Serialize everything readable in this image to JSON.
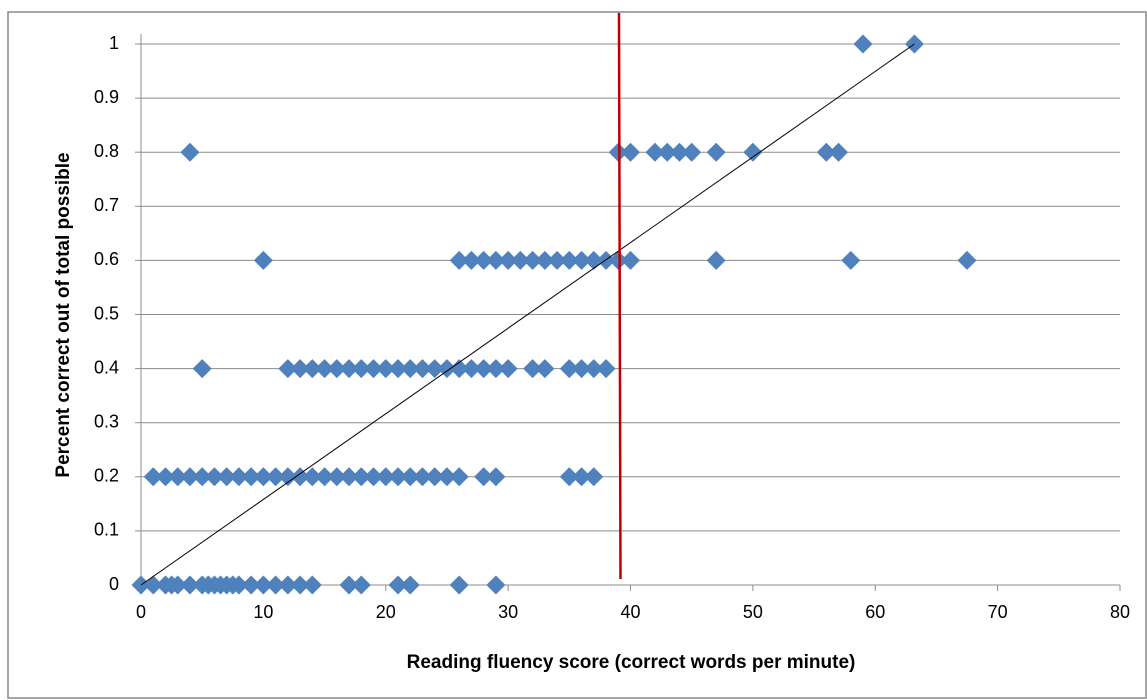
{
  "chart_data": {
    "type": "scatter",
    "x_label": "Reading fluency score  (correct words per minute)",
    "y_label": "Percent correct out of total possible",
    "x": [
      59,
      63.2,
      4,
      39,
      40,
      42,
      43,
      44,
      45,
      47,
      50,
      56,
      57,
      10,
      26,
      27,
      28,
      29,
      30,
      31,
      32,
      33,
      34,
      35,
      36,
      37,
      38,
      39,
      40,
      47,
      58,
      67.5,
      5,
      12,
      13,
      14,
      15,
      16,
      17,
      18,
      19,
      20,
      21,
      22,
      23,
      24,
      25,
      26,
      27,
      28,
      29,
      30,
      32,
      33,
      35,
      36,
      37,
      38,
      1,
      2,
      3,
      4,
      5,
      6,
      7,
      8,
      9,
      10,
      11,
      12,
      13,
      14,
      15,
      16,
      17,
      18,
      19,
      20,
      21,
      22,
      23,
      24,
      25,
      26,
      28,
      29,
      35,
      36,
      37,
      0,
      1,
      2,
      2.5,
      3,
      4,
      5,
      5.5,
      6,
      6.5,
      7,
      7.5,
      8,
      9,
      10,
      11,
      12,
      13,
      14,
      17,
      18,
      21,
      22,
      26,
      29
    ],
    "values": [
      1,
      1,
      0.8,
      0.8,
      0.8,
      0.8,
      0.8,
      0.8,
      0.8,
      0.8,
      0.8,
      0.8,
      0.8,
      0.6,
      0.6,
      0.6,
      0.6,
      0.6,
      0.6,
      0.6,
      0.6,
      0.6,
      0.6,
      0.6,
      0.6,
      0.6,
      0.6,
      0.6,
      0.6,
      0.6,
      0.6,
      0.6,
      0.4,
      0.4,
      0.4,
      0.4,
      0.4,
      0.4,
      0.4,
      0.4,
      0.4,
      0.4,
      0.4,
      0.4,
      0.4,
      0.4,
      0.4,
      0.4,
      0.4,
      0.4,
      0.4,
      0.4,
      0.4,
      0.4,
      0.4,
      0.4,
      0.4,
      0.4,
      0.2,
      0.2,
      0.2,
      0.2,
      0.2,
      0.2,
      0.2,
      0.2,
      0.2,
      0.2,
      0.2,
      0.2,
      0.2,
      0.2,
      0.2,
      0.2,
      0.2,
      0.2,
      0.2,
      0.2,
      0.2,
      0.2,
      0.2,
      0.2,
      0.2,
      0.2,
      0.2,
      0.2,
      0.2,
      0.2,
      0.2,
      0,
      0,
      0,
      0,
      0,
      0,
      0,
      0,
      0,
      0,
      0,
      0,
      0,
      0,
      0,
      0,
      0,
      0,
      0,
      0,
      0,
      0,
      0,
      0,
      0
    ],
    "color": "#4f81bd",
    "marker": "diamond",
    "trendline": {
      "x": [
        0,
        63.2
      ],
      "values": [
        0,
        1
      ],
      "color": "#000000"
    },
    "reference_x": 39.1,
    "reference_color": "#c00000",
    "xlim": [
      0,
      80
    ],
    "xticks": [
      0,
      10,
      20,
      30,
      40,
      50,
      60,
      70,
      80
    ],
    "ylim": [
      0,
      1
    ],
    "yticks": [
      0,
      0.1,
      0.2,
      0.3,
      0.4,
      0.5,
      0.6,
      0.7,
      0.8,
      0.9,
      1
    ],
    "grid": true
  }
}
